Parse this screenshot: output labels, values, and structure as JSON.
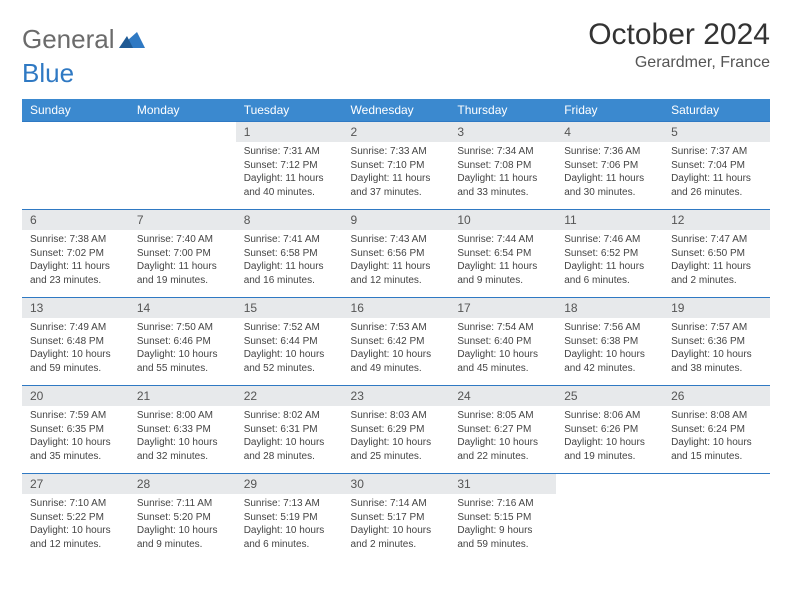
{
  "brand": {
    "part1": "General",
    "part2": "Blue"
  },
  "title": "October 2024",
  "location": "Gerardmer, France",
  "colors": {
    "header_bg": "#3b89cf",
    "daynum_bg": "#e7e9eb",
    "row_border": "#2f79c3",
    "brand_gray": "#6b6b6b",
    "brand_blue": "#2f79c3"
  },
  "weekdays": [
    "Sunday",
    "Monday",
    "Tuesday",
    "Wednesday",
    "Thursday",
    "Friday",
    "Saturday"
  ],
  "weeks": [
    [
      {
        "n": "",
        "sr": "",
        "ss": "",
        "dl": ""
      },
      {
        "n": "",
        "sr": "",
        "ss": "",
        "dl": ""
      },
      {
        "n": "1",
        "sr": "Sunrise: 7:31 AM",
        "ss": "Sunset: 7:12 PM",
        "dl": "Daylight: 11 hours and 40 minutes."
      },
      {
        "n": "2",
        "sr": "Sunrise: 7:33 AM",
        "ss": "Sunset: 7:10 PM",
        "dl": "Daylight: 11 hours and 37 minutes."
      },
      {
        "n": "3",
        "sr": "Sunrise: 7:34 AM",
        "ss": "Sunset: 7:08 PM",
        "dl": "Daylight: 11 hours and 33 minutes."
      },
      {
        "n": "4",
        "sr": "Sunrise: 7:36 AM",
        "ss": "Sunset: 7:06 PM",
        "dl": "Daylight: 11 hours and 30 minutes."
      },
      {
        "n": "5",
        "sr": "Sunrise: 7:37 AM",
        "ss": "Sunset: 7:04 PM",
        "dl": "Daylight: 11 hours and 26 minutes."
      }
    ],
    [
      {
        "n": "6",
        "sr": "Sunrise: 7:38 AM",
        "ss": "Sunset: 7:02 PM",
        "dl": "Daylight: 11 hours and 23 minutes."
      },
      {
        "n": "7",
        "sr": "Sunrise: 7:40 AM",
        "ss": "Sunset: 7:00 PM",
        "dl": "Daylight: 11 hours and 19 minutes."
      },
      {
        "n": "8",
        "sr": "Sunrise: 7:41 AM",
        "ss": "Sunset: 6:58 PM",
        "dl": "Daylight: 11 hours and 16 minutes."
      },
      {
        "n": "9",
        "sr": "Sunrise: 7:43 AM",
        "ss": "Sunset: 6:56 PM",
        "dl": "Daylight: 11 hours and 12 minutes."
      },
      {
        "n": "10",
        "sr": "Sunrise: 7:44 AM",
        "ss": "Sunset: 6:54 PM",
        "dl": "Daylight: 11 hours and 9 minutes."
      },
      {
        "n": "11",
        "sr": "Sunrise: 7:46 AM",
        "ss": "Sunset: 6:52 PM",
        "dl": "Daylight: 11 hours and 6 minutes."
      },
      {
        "n": "12",
        "sr": "Sunrise: 7:47 AM",
        "ss": "Sunset: 6:50 PM",
        "dl": "Daylight: 11 hours and 2 minutes."
      }
    ],
    [
      {
        "n": "13",
        "sr": "Sunrise: 7:49 AM",
        "ss": "Sunset: 6:48 PM",
        "dl": "Daylight: 10 hours and 59 minutes."
      },
      {
        "n": "14",
        "sr": "Sunrise: 7:50 AM",
        "ss": "Sunset: 6:46 PM",
        "dl": "Daylight: 10 hours and 55 minutes."
      },
      {
        "n": "15",
        "sr": "Sunrise: 7:52 AM",
        "ss": "Sunset: 6:44 PM",
        "dl": "Daylight: 10 hours and 52 minutes."
      },
      {
        "n": "16",
        "sr": "Sunrise: 7:53 AM",
        "ss": "Sunset: 6:42 PM",
        "dl": "Daylight: 10 hours and 49 minutes."
      },
      {
        "n": "17",
        "sr": "Sunrise: 7:54 AM",
        "ss": "Sunset: 6:40 PM",
        "dl": "Daylight: 10 hours and 45 minutes."
      },
      {
        "n": "18",
        "sr": "Sunrise: 7:56 AM",
        "ss": "Sunset: 6:38 PM",
        "dl": "Daylight: 10 hours and 42 minutes."
      },
      {
        "n": "19",
        "sr": "Sunrise: 7:57 AM",
        "ss": "Sunset: 6:36 PM",
        "dl": "Daylight: 10 hours and 38 minutes."
      }
    ],
    [
      {
        "n": "20",
        "sr": "Sunrise: 7:59 AM",
        "ss": "Sunset: 6:35 PM",
        "dl": "Daylight: 10 hours and 35 minutes."
      },
      {
        "n": "21",
        "sr": "Sunrise: 8:00 AM",
        "ss": "Sunset: 6:33 PM",
        "dl": "Daylight: 10 hours and 32 minutes."
      },
      {
        "n": "22",
        "sr": "Sunrise: 8:02 AM",
        "ss": "Sunset: 6:31 PM",
        "dl": "Daylight: 10 hours and 28 minutes."
      },
      {
        "n": "23",
        "sr": "Sunrise: 8:03 AM",
        "ss": "Sunset: 6:29 PM",
        "dl": "Daylight: 10 hours and 25 minutes."
      },
      {
        "n": "24",
        "sr": "Sunrise: 8:05 AM",
        "ss": "Sunset: 6:27 PM",
        "dl": "Daylight: 10 hours and 22 minutes."
      },
      {
        "n": "25",
        "sr": "Sunrise: 8:06 AM",
        "ss": "Sunset: 6:26 PM",
        "dl": "Daylight: 10 hours and 19 minutes."
      },
      {
        "n": "26",
        "sr": "Sunrise: 8:08 AM",
        "ss": "Sunset: 6:24 PM",
        "dl": "Daylight: 10 hours and 15 minutes."
      }
    ],
    [
      {
        "n": "27",
        "sr": "Sunrise: 7:10 AM",
        "ss": "Sunset: 5:22 PM",
        "dl": "Daylight: 10 hours and 12 minutes."
      },
      {
        "n": "28",
        "sr": "Sunrise: 7:11 AM",
        "ss": "Sunset: 5:20 PM",
        "dl": "Daylight: 10 hours and 9 minutes."
      },
      {
        "n": "29",
        "sr": "Sunrise: 7:13 AM",
        "ss": "Sunset: 5:19 PM",
        "dl": "Daylight: 10 hours and 6 minutes."
      },
      {
        "n": "30",
        "sr": "Sunrise: 7:14 AM",
        "ss": "Sunset: 5:17 PM",
        "dl": "Daylight: 10 hours and 2 minutes."
      },
      {
        "n": "31",
        "sr": "Sunrise: 7:16 AM",
        "ss": "Sunset: 5:15 PM",
        "dl": "Daylight: 9 hours and 59 minutes."
      },
      {
        "n": "",
        "sr": "",
        "ss": "",
        "dl": ""
      },
      {
        "n": "",
        "sr": "",
        "ss": "",
        "dl": ""
      }
    ]
  ]
}
